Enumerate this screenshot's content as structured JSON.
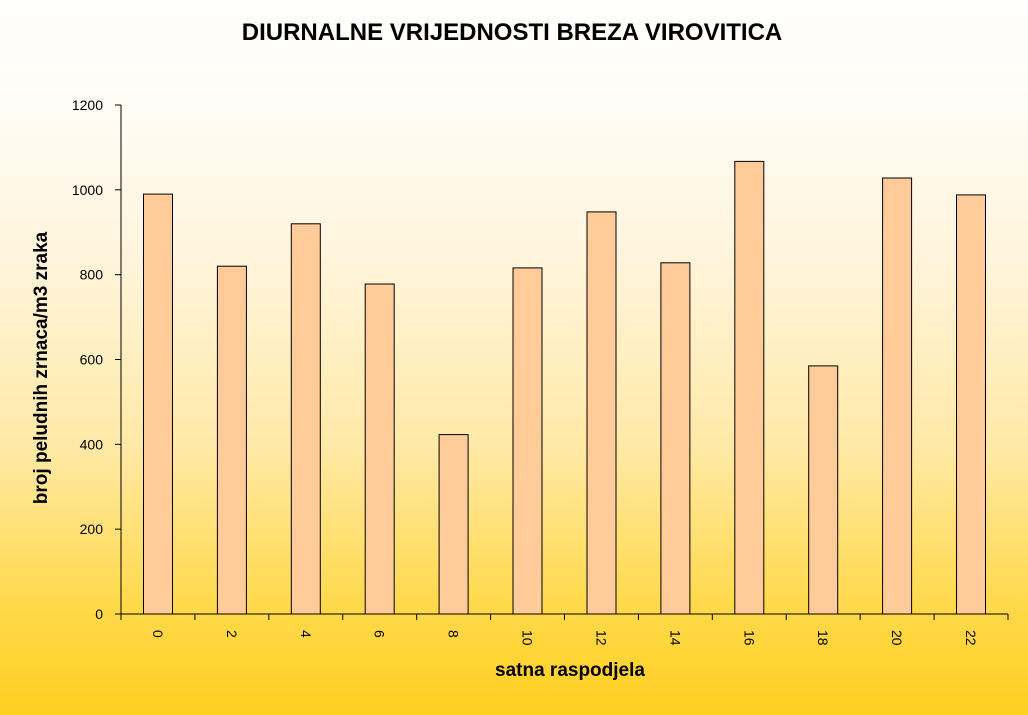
{
  "chart_data": {
    "type": "bar",
    "title": "DIURNALNE VRIJEDNOSTI BREZA VIROVITICA",
    "xlabel": "satna raspodjela",
    "ylabel": "broj peludnih  zrnaca/m3  zraka",
    "categories": [
      "0",
      "2",
      "4",
      "6",
      "8",
      "10",
      "12",
      "14",
      "16",
      "18",
      "20",
      "22"
    ],
    "values": [
      990,
      820,
      920,
      778,
      423,
      816,
      948,
      828,
      1067,
      585,
      1028,
      988
    ],
    "ylim": [
      0,
      1200
    ],
    "yticks": [
      "0",
      "200",
      "400",
      "600",
      "800",
      "1000",
      "1200"
    ],
    "grid": false,
    "legend": "none",
    "colors": {
      "bar_fill": "#ffcc99",
      "bar_stroke": "#000000",
      "axis": "#000000"
    }
  }
}
